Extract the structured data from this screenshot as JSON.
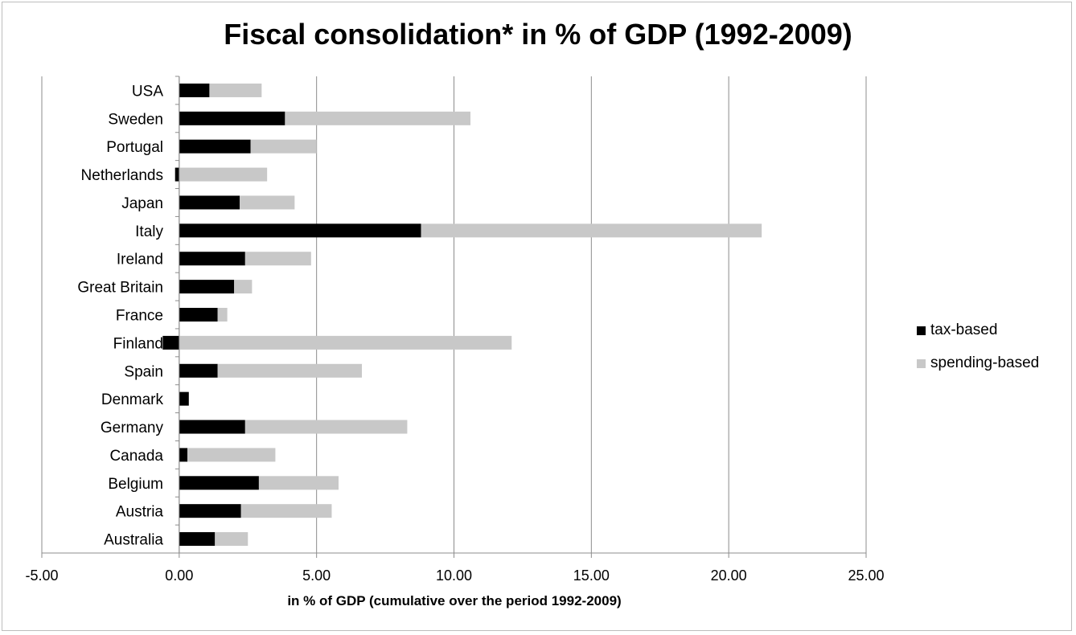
{
  "chart_data": {
    "type": "bar",
    "orientation": "horizontal",
    "stacked": true,
    "title": "Fiscal consolidation* in % of GDP (1992-2009)",
    "xlabel": "in % of GDP (cumulative over the period 1992-2009)",
    "ylabel": "",
    "xlim": [
      -5,
      25
    ],
    "xticks": [
      -5,
      0,
      5,
      10,
      15,
      20,
      25
    ],
    "xtick_labels": [
      "-5.00",
      "0.00",
      "5.00",
      "10.00",
      "15.00",
      "20.00",
      "25.00"
    ],
    "grid": true,
    "legend_position": "right",
    "categories": [
      "USA",
      "Sweden",
      "Portugal",
      "Netherlands",
      "Japan",
      "Italy",
      "Ireland",
      "Great Britain",
      "France",
      "Finland",
      "Spain",
      "Denmark",
      "Germany",
      "Canada",
      "Belgium",
      "Austria",
      "Australia"
    ],
    "series": [
      {
        "name": "tax-based",
        "color": "#000000",
        "values": [
          1.1,
          3.85,
          2.6,
          -0.15,
          2.2,
          8.8,
          2.4,
          2.0,
          1.4,
          -0.6,
          1.4,
          0.35,
          2.4,
          0.3,
          2.9,
          2.25,
          1.3
        ]
      },
      {
        "name": "spending-based",
        "color": "#c8c8c8",
        "values": [
          1.9,
          6.75,
          2.4,
          3.2,
          2.0,
          12.4,
          2.4,
          0.65,
          0.35,
          12.1,
          5.25,
          0.0,
          5.9,
          3.2,
          2.9,
          3.3,
          1.2
        ]
      }
    ]
  }
}
